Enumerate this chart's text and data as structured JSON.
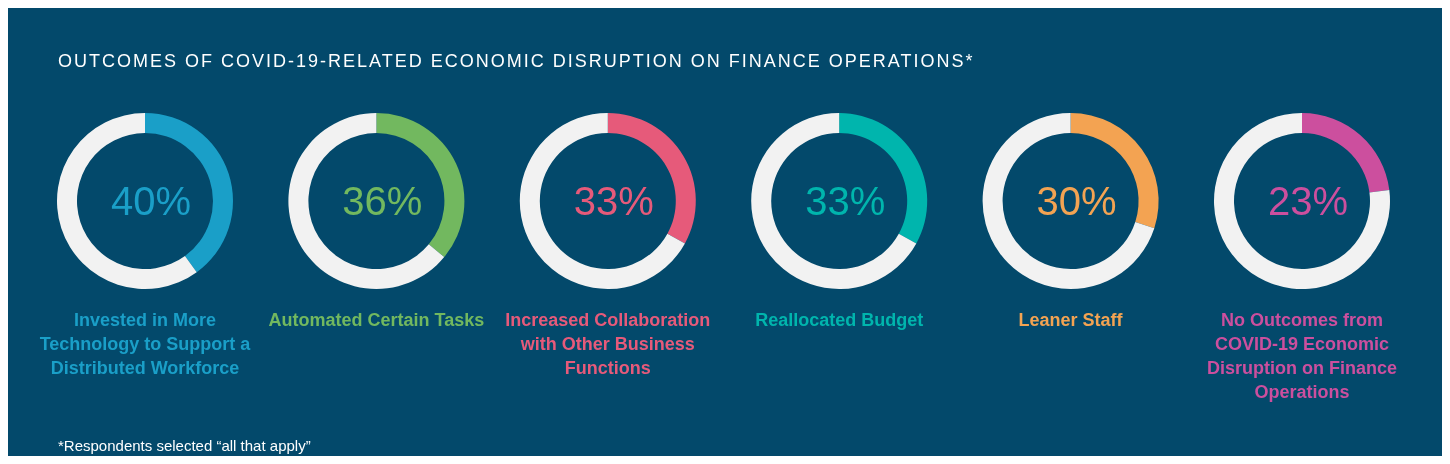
{
  "chart_data": [
    {
      "type": "donut",
      "title": "OUTCOMES OF COVID-19-RELATED ECONOMIC DISRUPTION ON FINANCE OPERATIONS*",
      "annotations": [
        "*Respondents selected “all that apply”"
      ],
      "xlabel": "Invested in More Technology to Support a Distributed Workforce",
      "categories": [
        null,
        null
      ],
      "values": [
        40,
        60
      ],
      "colors": [
        "#1a9fc8",
        "#f2f2f2"
      ],
      "value_labels": [
        "40%",
        null
      ]
    },
    {
      "type": "donut",
      "xlabel": "Automated Certain Tasks",
      "categories": [
        null,
        null
      ],
      "values": [
        36,
        64
      ],
      "colors": [
        "#72b85f",
        "#f2f2f2"
      ],
      "value_labels": [
        "36%",
        null
      ]
    },
    {
      "type": "donut",
      "xlabel": "Increased Collaboration with Other Business Functions",
      "categories": [
        null,
        null
      ],
      "values": [
        33,
        67
      ],
      "colors": [
        "#e65a7a",
        "#f2f2f2"
      ],
      "value_labels": [
        "33%",
        null
      ]
    },
    {
      "type": "donut",
      "xlabel": "Reallocated Budget",
      "categories": [
        null,
        null
      ],
      "values": [
        33,
        67
      ],
      "colors": [
        "#00b5ad",
        "#f2f2f2"
      ],
      "value_labels": [
        "33%",
        null
      ]
    },
    {
      "type": "donut",
      "xlabel": "Leaner Staff",
      "categories": [
        null,
        null
      ],
      "values": [
        30,
        70
      ],
      "colors": [
        "#f3a352",
        "#f2f2f2"
      ],
      "value_labels": [
        "30%",
        null
      ]
    },
    {
      "type": "donut",
      "xlabel": "No Outcomes from COVID-19 Economic Disruption on Finance Operations",
      "categories": [
        null,
        null
      ],
      "values": [
        23,
        77
      ],
      "colors": [
        "#cc4f9e",
        "#f2f2f2"
      ],
      "value_labels": [
        "23%",
        null
      ]
    }
  ]
}
